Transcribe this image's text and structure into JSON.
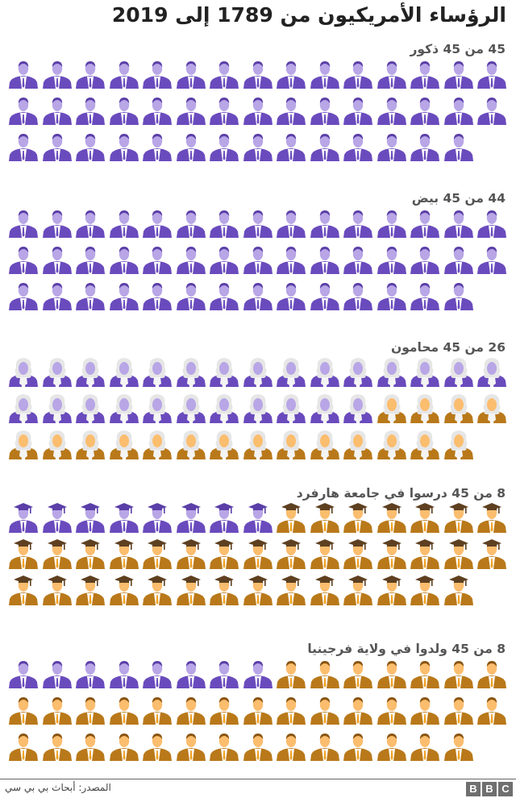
{
  "title": "الرؤساء الأمريكيون من 1789 إلى 2019",
  "colors": {
    "highlight_suit": "#6a4bbd",
    "highlight_face": "#b8a6e6",
    "highlight_hair": "#5b3fa8",
    "other_suit": "#b9791a",
    "other_face": "#fbbd6e",
    "other_hair": "#8a5512",
    "wig": "#e6e6e6",
    "cap_purple": "#5b3fa8",
    "cap_brown": "#5e4020",
    "label": "#555555",
    "footer_line": "#666666",
    "bbc_block": "#6f6f6f"
  },
  "sections": [
    {
      "label": "45 من 45 ذكور",
      "icon": "suit",
      "highlight": 45,
      "shown": 44,
      "fill_from": "left",
      "layout": [
        15,
        15,
        14
      ]
    },
    {
      "label": "44 من 45 بيض",
      "icon": "suit",
      "highlight": 44,
      "shown": 44,
      "fill_from": "left",
      "layout": [
        15,
        15,
        14
      ]
    },
    {
      "label": "26 من 45 محامون",
      "icon": "wig",
      "highlight": 26,
      "shown": 44,
      "fill_from": "left",
      "layout": [
        15,
        15,
        14
      ]
    },
    {
      "label": "8 من 45 درسوا في جامعة هارفرد",
      "icon": "cap",
      "highlight": 8,
      "shown": 44,
      "fill_from": "left",
      "layout": [
        15,
        15,
        14
      ]
    },
    {
      "label": "8 من 45 ولدوا في ولاية فرجينيا",
      "icon": "suit",
      "highlight": 8,
      "shown": 44,
      "fill_from": "left",
      "layout": [
        15,
        15,
        14
      ]
    }
  ],
  "footer": {
    "source": "المصدر: أبحاث بي بي سي",
    "logo": [
      "B",
      "B",
      "C"
    ]
  },
  "chart_data": {
    "type": "pictogram",
    "title": "الرؤساء الأمريكيون من 1789 إلى 2019",
    "total": 45,
    "categories": [
      "ذكور",
      "بيض",
      "محامون",
      "درسوا في جامعة هارفرد",
      "ولدوا في ولاية فرجينيا"
    ],
    "values": [
      45,
      44,
      26,
      8,
      8
    ],
    "labels": [
      "45 من 45 ذكور",
      "44 من 45 بيض",
      "26 من 45 محامون",
      "8 من 45 درسوا في جامعة هارفرد",
      "8 من 45 ولدوا في ولاية فرجينيا"
    ],
    "legend": {
      "highlight": "purple",
      "rest": "orange"
    },
    "source": "المصدر: أبحاث بي بي سي"
  }
}
